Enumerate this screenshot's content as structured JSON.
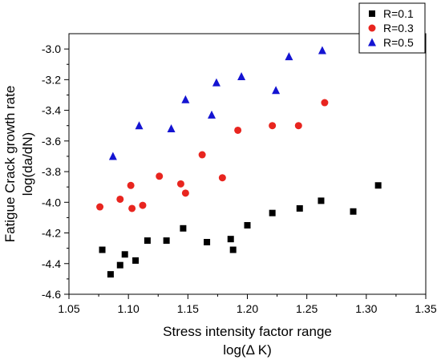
{
  "chart_data": {
    "type": "scatter",
    "xlabel": "Stress intensity factor range",
    "xlabel_sub": "log(Δ K)",
    "ylabel": "Fatigue Crack growth rate",
    "ylabel_sub": "log(da/dN)",
    "xlim": [
      1.05,
      1.35
    ],
    "ylim": [
      -4.6,
      -2.9
    ],
    "x_ticks": [
      1.05,
      1.1,
      1.15,
      1.2,
      1.25,
      1.3,
      1.35
    ],
    "x_tick_labels": [
      "1.05",
      "1.10",
      "1.15",
      "1.20",
      "1.25",
      "1.30",
      "1.35"
    ],
    "y_ticks": [
      -4.6,
      -4.4,
      -4.2,
      -4.0,
      -3.8,
      -3.6,
      -3.4,
      -3.2,
      -3.0
    ],
    "y_tick_labels": [
      "-4.6",
      "-4.4",
      "-4.2",
      "-4.0",
      "-3.8",
      "-3.6",
      "-3.4",
      "-3.2",
      "-3.0"
    ],
    "grid": false,
    "legend_position": "top-right",
    "series": [
      {
        "name": "R=0.1",
        "marker": "square",
        "color": "#000000",
        "points": [
          [
            1.078,
            -4.31
          ],
          [
            1.085,
            -4.47
          ],
          [
            1.093,
            -4.41
          ],
          [
            1.097,
            -4.34
          ],
          [
            1.106,
            -4.38
          ],
          [
            1.116,
            -4.25
          ],
          [
            1.132,
            -4.25
          ],
          [
            1.146,
            -4.17
          ],
          [
            1.166,
            -4.26
          ],
          [
            1.186,
            -4.24
          ],
          [
            1.188,
            -4.31
          ],
          [
            1.2,
            -4.15
          ],
          [
            1.221,
            -4.07
          ],
          [
            1.244,
            -4.04
          ],
          [
            1.262,
            -3.99
          ],
          [
            1.289,
            -4.06
          ],
          [
            1.31,
            -3.89
          ]
        ]
      },
      {
        "name": "R=0.3",
        "marker": "circle",
        "color": "#e8251f",
        "points": [
          [
            1.076,
            -4.03
          ],
          [
            1.093,
            -3.98
          ],
          [
            1.102,
            -3.89
          ],
          [
            1.103,
            -4.04
          ],
          [
            1.112,
            -4.02
          ],
          [
            1.126,
            -3.83
          ],
          [
            1.144,
            -3.88
          ],
          [
            1.148,
            -3.94
          ],
          [
            1.162,
            -3.69
          ],
          [
            1.179,
            -3.84
          ],
          [
            1.192,
            -3.53
          ],
          [
            1.221,
            -3.5
          ],
          [
            1.243,
            -3.5
          ],
          [
            1.265,
            -3.35
          ]
        ]
      },
      {
        "name": "R=0.5",
        "marker": "triangle",
        "color": "#1414d2",
        "points": [
          [
            1.087,
            -3.7
          ],
          [
            1.109,
            -3.5
          ],
          [
            1.136,
            -3.52
          ],
          [
            1.148,
            -3.33
          ],
          [
            1.17,
            -3.43
          ],
          [
            1.174,
            -3.22
          ],
          [
            1.195,
            -3.18
          ],
          [
            1.224,
            -3.27
          ],
          [
            1.235,
            -3.05
          ],
          [
            1.263,
            -3.01
          ]
        ]
      }
    ]
  }
}
